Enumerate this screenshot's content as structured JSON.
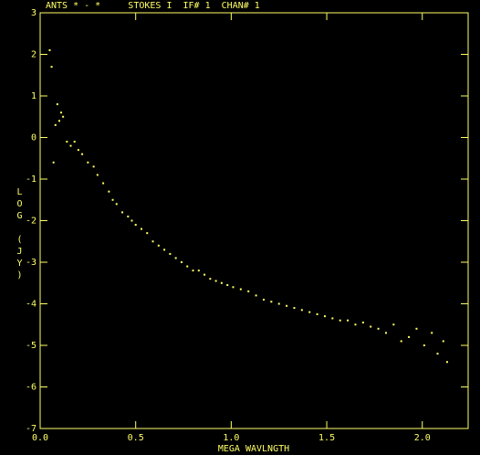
{
  "chart_data": {
    "type": "scatter",
    "title": "ANTS * - *     STOKES I  IF# 1  CHAN# 1",
    "x_label": "MEGA WAVLNGTH",
    "y_label": "LOG (JY)",
    "color": "#ffff66",
    "xlim": [
      0,
      2.24
    ],
    "ylim": [
      -7,
      3
    ],
    "xticks": [
      {
        "value": 0,
        "label": "0.0"
      },
      0.5,
      {
        "value": 1,
        "label": "1.0"
      },
      1.5,
      {
        "value": 2,
        "label": "2.0"
      }
    ],
    "yticks": [
      3,
      2,
      1,
      0,
      -1,
      -2,
      -3,
      -4,
      -5,
      -6,
      -7
    ],
    "x": [
      0.05,
      0.06,
      0.07,
      0.08,
      0.09,
      0.1,
      0.11,
      0.12,
      0.14,
      0.16,
      0.18,
      0.2,
      0.22,
      0.25,
      0.28,
      0.3,
      0.33,
      0.36,
      0.38,
      0.4,
      0.43,
      0.46,
      0.48,
      0.5,
      0.53,
      0.56,
      0.59,
      0.62,
      0.65,
      0.68,
      0.71,
      0.74,
      0.77,
      0.8,
      0.83,
      0.86,
      0.89,
      0.92,
      0.95,
      0.98,
      1.01,
      1.05,
      1.09,
      1.13,
      1.17,
      1.21,
      1.25,
      1.29,
      1.33,
      1.37,
      1.41,
      1.45,
      1.49,
      1.53,
      1.57,
      1.61,
      1.65,
      1.69,
      1.73,
      1.77,
      1.81,
      1.85,
      1.89,
      1.93,
      1.97,
      2.01,
      2.05,
      2.08,
      2.11,
      2.13
    ],
    "values": [
      2.1,
      1.7,
      -0.6,
      0.3,
      0.8,
      0.4,
      0.6,
      0.5,
      -0.1,
      -0.2,
      -0.1,
      -0.3,
      -0.4,
      -0.6,
      -0.7,
      -0.9,
      -1.1,
      -1.3,
      -1.5,
      -1.6,
      -1.8,
      -1.9,
      -2.0,
      -2.1,
      -2.2,
      -2.3,
      -2.5,
      -2.6,
      -2.7,
      -2.8,
      -2.9,
      -3.0,
      -3.1,
      -3.2,
      -3.2,
      -3.3,
      -3.4,
      -3.45,
      -3.5,
      -3.55,
      -3.6,
      -3.65,
      -3.7,
      -3.8,
      -3.9,
      -3.95,
      -4.0,
      -4.05,
      -4.1,
      -4.15,
      -4.2,
      -4.25,
      -4.3,
      -4.35,
      -4.4,
      -4.4,
      -4.5,
      -4.45,
      -4.55,
      -4.6,
      -4.7,
      -4.5,
      -4.9,
      -4.8,
      -4.6,
      -5.0,
      -4.7,
      -5.2,
      -4.9,
      -5.4
    ]
  }
}
